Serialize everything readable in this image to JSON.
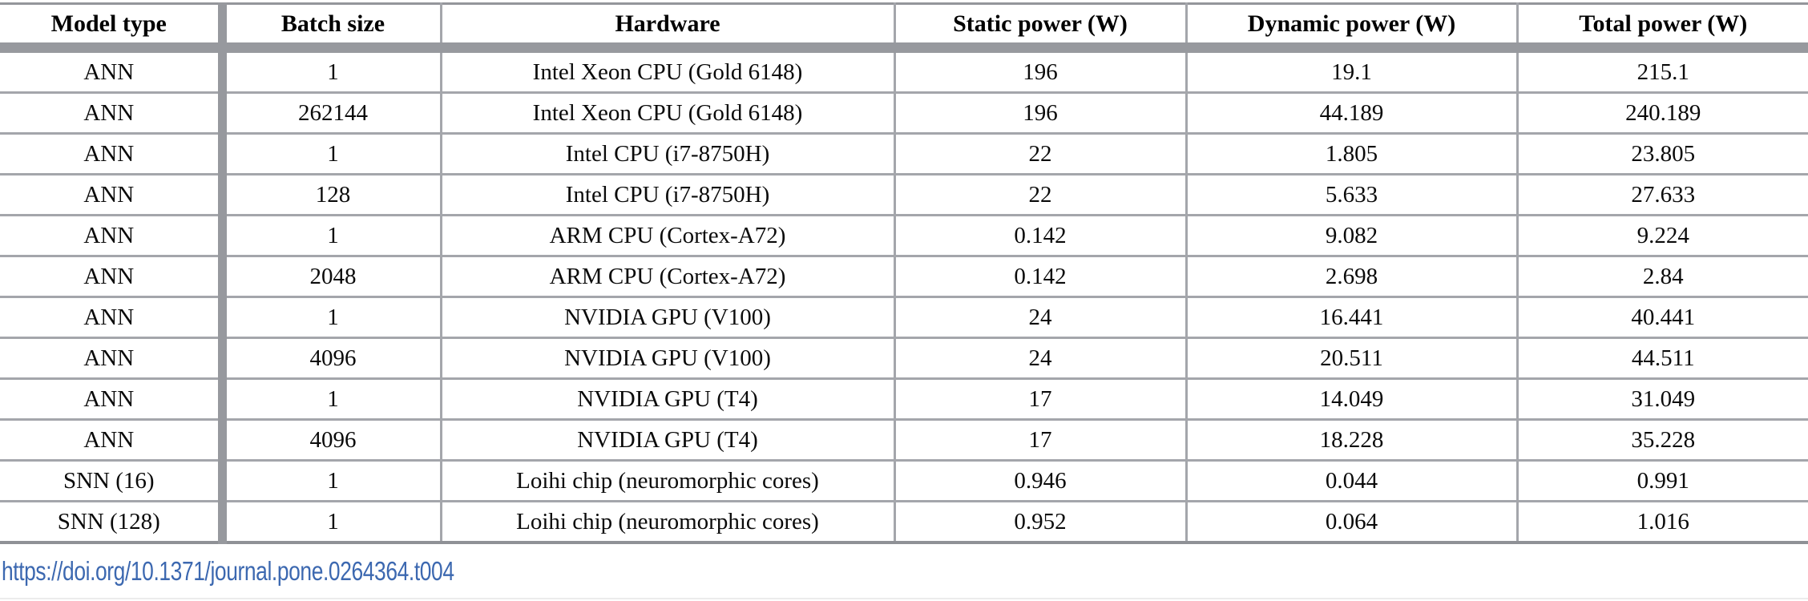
{
  "table": {
    "headers": [
      "Model type",
      "Batch size",
      "Hardware",
      "Static power (W)",
      "Dynamic power (W)",
      "Total power (W)"
    ],
    "rows": [
      [
        "ANN",
        "1",
        "Intel Xeon CPU (Gold 6148)",
        "196",
        "19.1",
        "215.1"
      ],
      [
        "ANN",
        "262144",
        "Intel Xeon CPU (Gold 6148)",
        "196",
        "44.189",
        "240.189"
      ],
      [
        "ANN",
        "1",
        "Intel CPU (i7-8750H)",
        "22",
        "1.805",
        "23.805"
      ],
      [
        "ANN",
        "128",
        "Intel CPU (i7-8750H)",
        "22",
        "5.633",
        "27.633"
      ],
      [
        "ANN",
        "1",
        "ARM CPU (Cortex-A72)",
        "0.142",
        "9.082",
        "9.224"
      ],
      [
        "ANN",
        "2048",
        "ARM CPU (Cortex-A72)",
        "0.142",
        "2.698",
        "2.84"
      ],
      [
        "ANN",
        "1",
        "NVIDIA GPU (V100)",
        "24",
        "16.441",
        "40.441"
      ],
      [
        "ANN",
        "4096",
        "NVIDIA GPU (V100)",
        "24",
        "20.511",
        "44.511"
      ],
      [
        "ANN",
        "1",
        "NVIDIA GPU (T4)",
        "17",
        "14.049",
        "31.049"
      ],
      [
        "ANN",
        "4096",
        "NVIDIA GPU (T4)",
        "17",
        "18.228",
        "35.228"
      ],
      [
        "SNN (16)",
        "1",
        "Loihi chip (neuromorphic cores)",
        "0.946",
        "0.044",
        "0.991"
      ],
      [
        "SNN (128)",
        "1",
        "Loihi chip (neuromorphic cores)",
        "0.952",
        "0.064",
        "1.016"
      ]
    ]
  },
  "footer": {
    "link_text": "https://doi.org/10.1371/journal.pone.0264364.t004"
  },
  "colors": {
    "thick_rule": "#97999e",
    "thin_rule": "#a4a6ab",
    "link": "#3c68b0"
  }
}
